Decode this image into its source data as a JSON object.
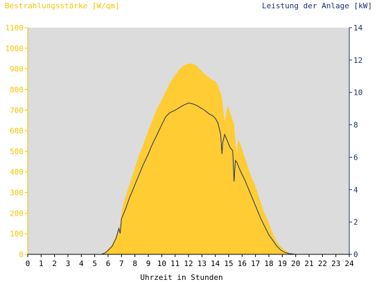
{
  "chart_data": {
    "type": "area",
    "left_axis_title": "Bestrahlungsstärke [W/qm]",
    "right_axis_title": "Leistung der Anlage [kW]",
    "xlabel": "Uhrzeit in Stunden",
    "xlim": [
      0,
      24
    ],
    "y_left_lim": [
      0,
      1100
    ],
    "y_right_lim": [
      0,
      14
    ],
    "x_ticks": [
      "0",
      "1",
      "2",
      "3",
      "4",
      "5",
      "6",
      "7",
      "8",
      "9",
      "10",
      "11",
      "12",
      "13",
      "14",
      "15",
      "16",
      "17",
      "18",
      "19",
      "20",
      "21",
      "22",
      "23",
      "24"
    ],
    "y_left_ticks": [
      "0",
      "100",
      "200",
      "300",
      "400",
      "500",
      "600",
      "700",
      "800",
      "900",
      "1000",
      "1100"
    ],
    "y_right_ticks": [
      "0",
      "2",
      "4",
      "6",
      "8",
      "10",
      "12",
      "14"
    ],
    "grid": false,
    "colors": {
      "plot_background": "#dcdcdc",
      "irradiance_fill": "#ffcc33",
      "power_line": "#1a2f6e",
      "left_axis_text": "#f5c400",
      "right_axis_text": "#1a2f6e"
    },
    "series": [
      {
        "name": "Bestrahlungsstärke [W/qm]",
        "axis": "left",
        "type": "area",
        "points": [
          [
            0,
            0
          ],
          [
            5.5,
            0
          ],
          [
            5.8,
            10
          ],
          [
            6.0,
            25
          ],
          [
            6.3,
            50
          ],
          [
            6.6,
            90
          ],
          [
            6.8,
            120
          ],
          [
            6.9,
            150
          ],
          [
            7.0,
            200
          ],
          [
            7.2,
            260
          ],
          [
            7.5,
            320
          ],
          [
            7.8,
            380
          ],
          [
            8.0,
            420
          ],
          [
            8.3,
            480
          ],
          [
            8.6,
            530
          ],
          [
            9.0,
            600
          ],
          [
            9.3,
            650
          ],
          [
            9.6,
            700
          ],
          [
            10.0,
            750
          ],
          [
            10.3,
            790
          ],
          [
            10.6,
            830
          ],
          [
            11.0,
            870
          ],
          [
            11.3,
            895
          ],
          [
            11.6,
            915
          ],
          [
            12.0,
            925
          ],
          [
            12.3,
            925
          ],
          [
            12.6,
            915
          ],
          [
            12.9,
            895
          ],
          [
            13.2,
            875
          ],
          [
            13.5,
            860
          ],
          [
            13.8,
            845
          ],
          [
            14.0,
            840
          ],
          [
            14.2,
            820
          ],
          [
            14.4,
            780
          ],
          [
            14.5,
            760
          ],
          [
            14.6,
            700
          ],
          [
            14.7,
            640
          ],
          [
            14.8,
            680
          ],
          [
            14.9,
            720
          ],
          [
            15.0,
            710
          ],
          [
            15.2,
            670
          ],
          [
            15.4,
            630
          ],
          [
            15.5,
            550
          ],
          [
            15.6,
            490
          ],
          [
            15.7,
            560
          ],
          [
            15.9,
            530
          ],
          [
            16.0,
            510
          ],
          [
            16.3,
            450
          ],
          [
            16.6,
            390
          ],
          [
            17.0,
            330
          ],
          [
            17.3,
            270
          ],
          [
            17.6,
            210
          ],
          [
            18.0,
            150
          ],
          [
            18.3,
            100
          ],
          [
            18.6,
            60
          ],
          [
            19.0,
            30
          ],
          [
            19.3,
            15
          ],
          [
            19.6,
            5
          ],
          [
            20.0,
            0
          ],
          [
            24,
            0
          ]
        ]
      },
      {
        "name": "Leistung der Anlage [kW]",
        "axis": "right",
        "type": "line",
        "points": [
          [
            0,
            0
          ],
          [
            5.5,
            0
          ],
          [
            5.8,
            0.1
          ],
          [
            6.0,
            0.25
          ],
          [
            6.3,
            0.5
          ],
          [
            6.6,
            1.0
          ],
          [
            6.8,
            1.6
          ],
          [
            6.9,
            1.3
          ],
          [
            7.0,
            2.2
          ],
          [
            7.3,
            2.8
          ],
          [
            7.6,
            3.5
          ],
          [
            8.0,
            4.3
          ],
          [
            8.3,
            4.9
          ],
          [
            8.6,
            5.5
          ],
          [
            9.0,
            6.2
          ],
          [
            9.3,
            6.8
          ],
          [
            9.6,
            7.3
          ],
          [
            10.0,
            8.0
          ],
          [
            10.3,
            8.5
          ],
          [
            10.6,
            8.75
          ],
          [
            11.0,
            8.9
          ],
          [
            11.3,
            9.05
          ],
          [
            11.6,
            9.2
          ],
          [
            12.0,
            9.35
          ],
          [
            12.3,
            9.3
          ],
          [
            12.6,
            9.2
          ],
          [
            12.9,
            9.05
          ],
          [
            13.2,
            8.9
          ],
          [
            13.5,
            8.7
          ],
          [
            13.8,
            8.55
          ],
          [
            14.0,
            8.4
          ],
          [
            14.2,
            8.1
          ],
          [
            14.4,
            7.4
          ],
          [
            14.5,
            6.2
          ],
          [
            14.55,
            6.9
          ],
          [
            14.7,
            7.4
          ],
          [
            14.9,
            7.0
          ],
          [
            15.1,
            6.6
          ],
          [
            15.3,
            6.4
          ],
          [
            15.4,
            4.5
          ],
          [
            15.5,
            5.8
          ],
          [
            15.6,
            5.7
          ],
          [
            15.9,
            5.1
          ],
          [
            16.2,
            4.6
          ],
          [
            16.5,
            4.0
          ],
          [
            16.8,
            3.4
          ],
          [
            17.1,
            2.8
          ],
          [
            17.4,
            2.2
          ],
          [
            17.7,
            1.7
          ],
          [
            18.0,
            1.2
          ],
          [
            18.3,
            0.85
          ],
          [
            18.6,
            0.5
          ],
          [
            18.9,
            0.25
          ],
          [
            19.2,
            0.12
          ],
          [
            19.5,
            0.05
          ],
          [
            19.8,
            0.02
          ],
          [
            20.0,
            0
          ],
          [
            24,
            0
          ]
        ]
      }
    ]
  }
}
